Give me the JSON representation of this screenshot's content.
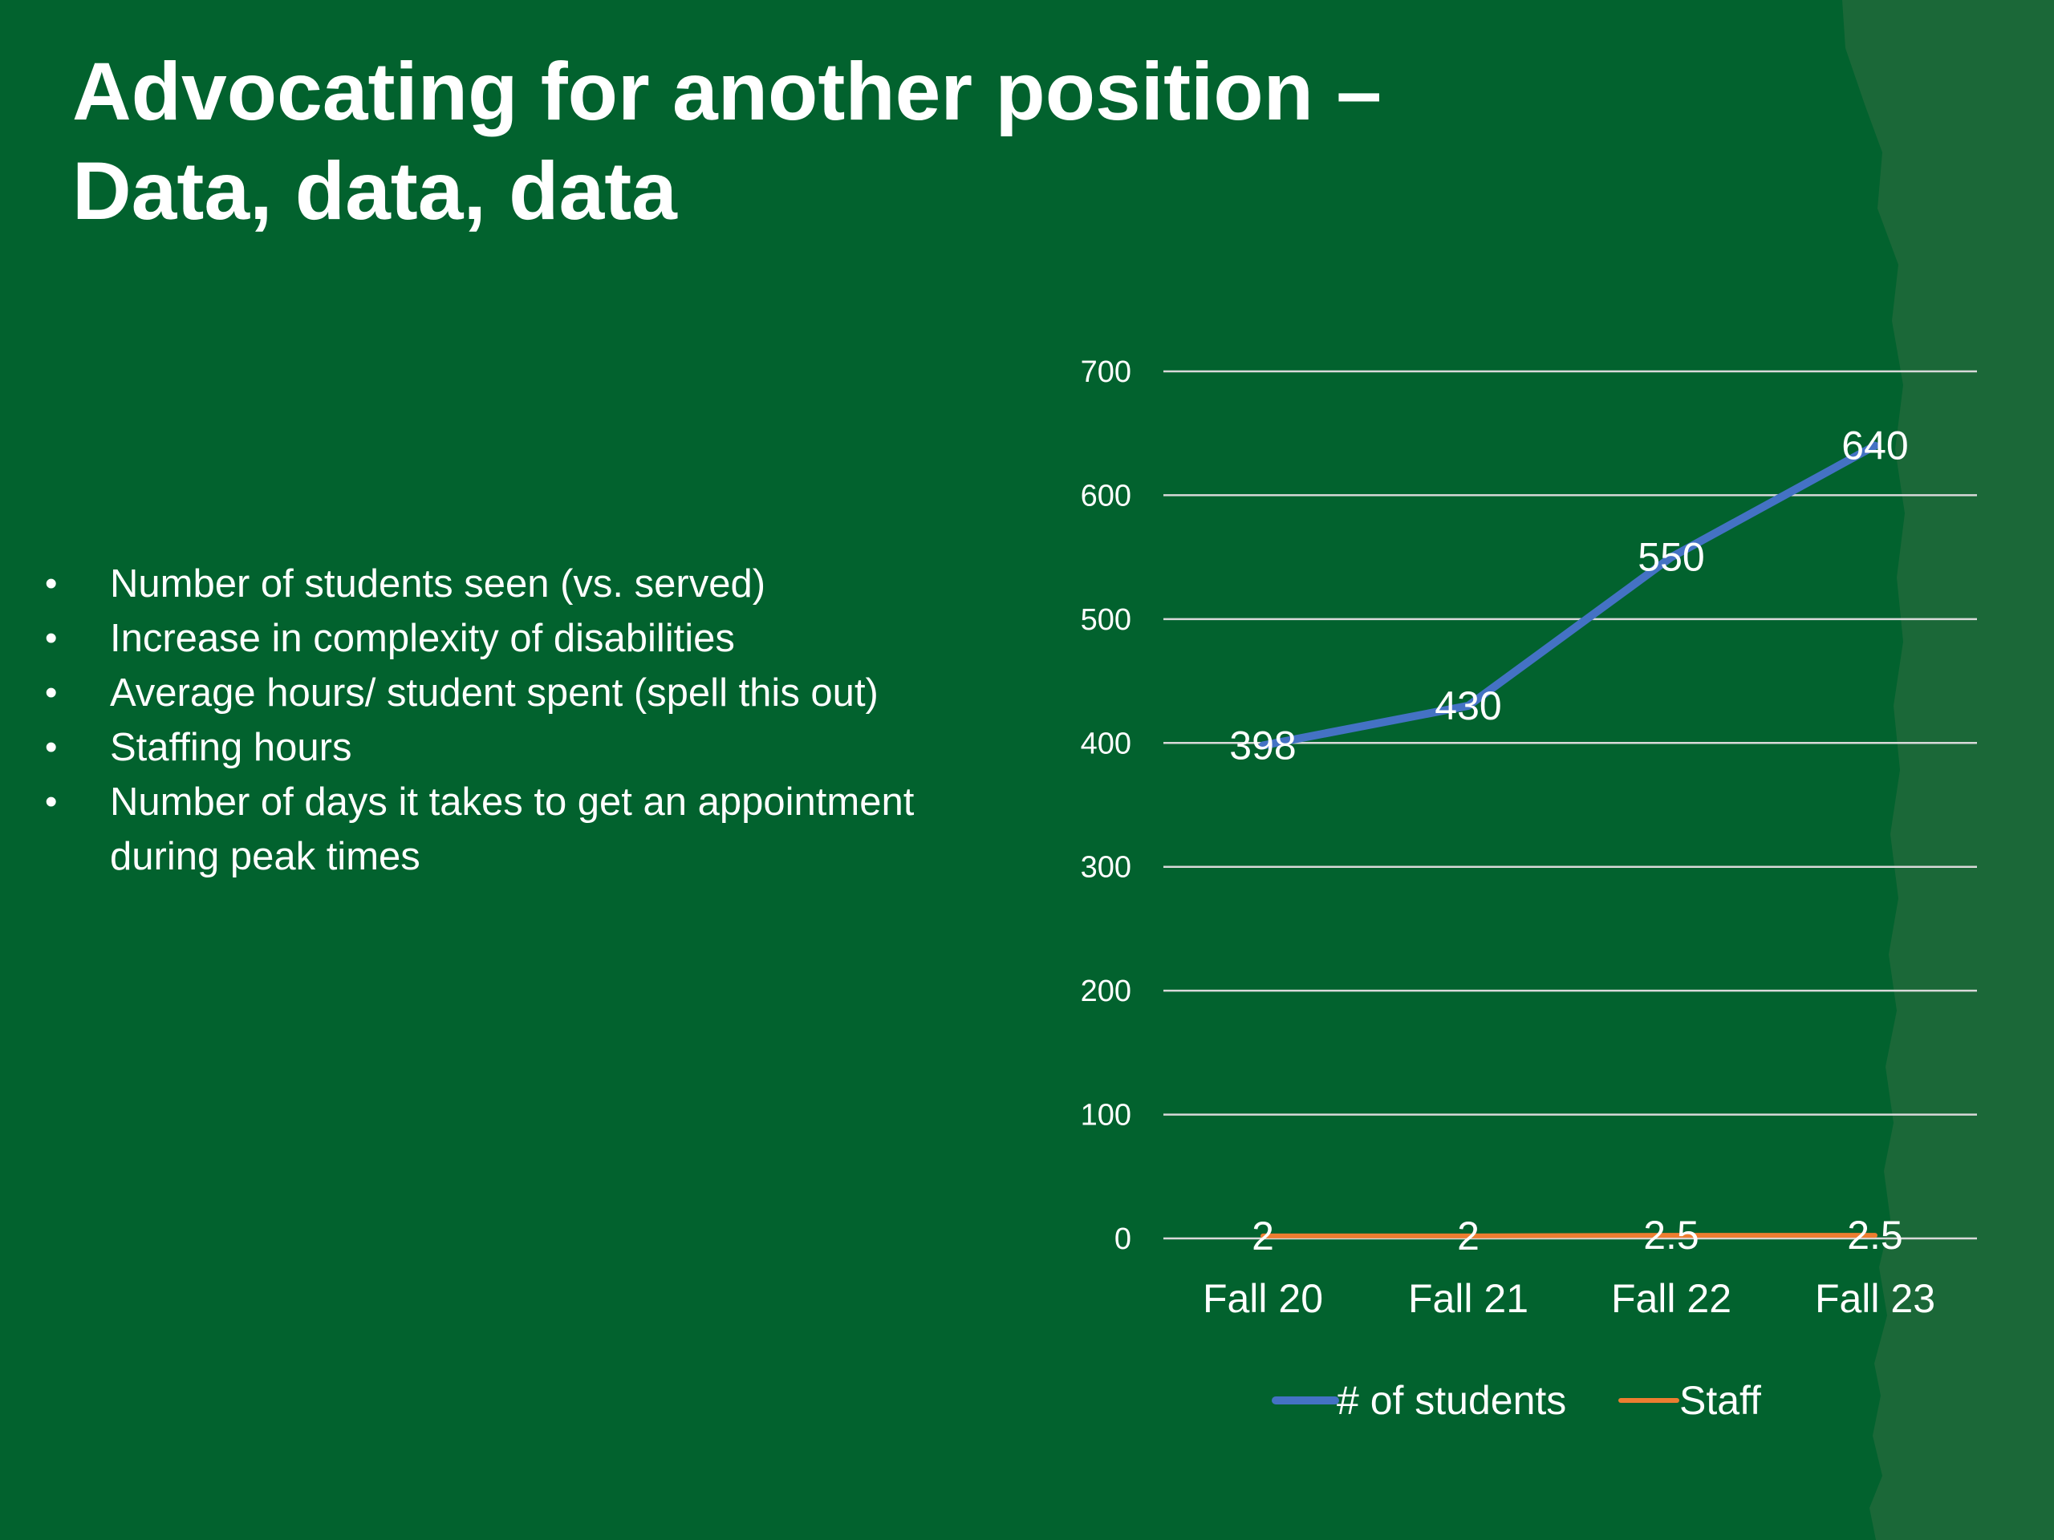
{
  "slide": {
    "title_line1": "Advocating for another position –",
    "title_line2": "Data, data, data",
    "bullets": [
      "Number of students seen (vs. served)",
      "Increase in complexity of disabilities",
      "Average hours/ student spent (spell this out)",
      "Staffing hours",
      "Number of days it takes to get an appointment during peak times"
    ],
    "background_color": "#02622e",
    "edge_band_color": "#1b6838"
  },
  "chart_data": {
    "type": "line",
    "title": "",
    "xlabel": "",
    "ylabel": "",
    "categories": [
      "Fall 20",
      "Fall 21",
      "Fall 22",
      "Fall 23"
    ],
    "ylim": [
      0,
      700
    ],
    "yticks": [
      0,
      100,
      200,
      300,
      400,
      500,
      600,
      700
    ],
    "grid": true,
    "legend_position": "bottom",
    "series": [
      {
        "name": "# of students",
        "values": [
          398,
          430,
          550,
          640
        ],
        "labels": [
          "398",
          "430",
          "550",
          "640"
        ],
        "color": "#4472c4"
      },
      {
        "name": "Staff",
        "values": [
          2,
          2,
          2.5,
          2.5
        ],
        "labels": [
          "2",
          "2",
          "2.5",
          "2.5"
        ],
        "color": "#ed7d31"
      }
    ]
  }
}
